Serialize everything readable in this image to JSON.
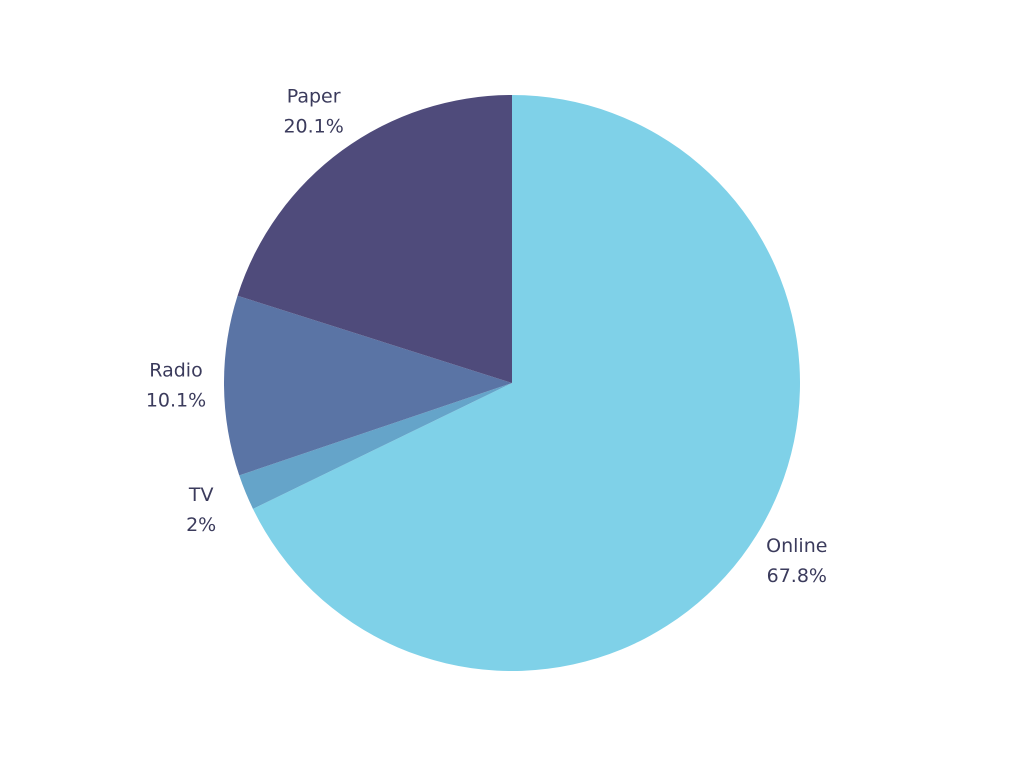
{
  "chart_data": {
    "type": "pie",
    "categories": [
      "Online",
      "TV",
      "Radio",
      "Paper"
    ],
    "values": [
      67.8,
      2,
      10.1,
      20.1
    ],
    "value_labels": [
      "67.8%",
      "2%",
      "10.1%",
      "20.1%"
    ],
    "colors": [
      "#7fd1e8",
      "#65a4c9",
      "#5a74a5",
      "#4f4b7b"
    ]
  }
}
